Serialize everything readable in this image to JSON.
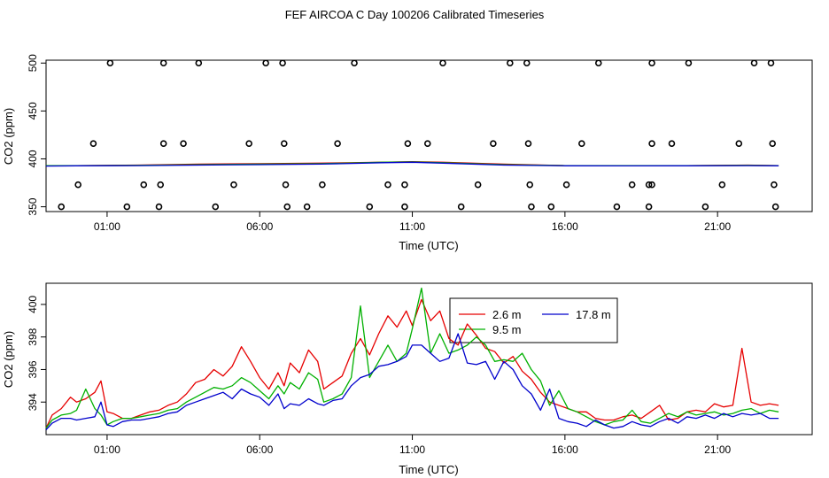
{
  "figure": {
    "title": "FEF AIRCOA C  Day 100206  Calibrated Timeseries"
  },
  "chart_data": [
    {
      "type": "scatter",
      "panel": "top",
      "title": "",
      "xlabel": "Time (UTC)",
      "ylabel": "CO2 (ppm)",
      "x_unit": "hours UTC",
      "xlim": [
        -1.0,
        24.1
      ],
      "ylim": [
        345,
        503
      ],
      "x_tick_values": [
        1,
        6,
        11,
        16,
        21
      ],
      "x_tick_labels": [
        "01:00",
        "06:00",
        "11:00",
        "16:00",
        "21:00"
      ],
      "y_tick_values": [
        350,
        400,
        450,
        500
      ],
      "y_tick_labels": [
        "350",
        "400",
        "450",
        "500"
      ],
      "grid": false,
      "points": [
        {
          "x": 1.1,
          "y": 500
        },
        {
          "x": 2.85,
          "y": 500
        },
        {
          "x": 4.0,
          "y": 500
        },
        {
          "x": 6.2,
          "y": 500
        },
        {
          "x": 6.75,
          "y": 500
        },
        {
          "x": 9.1,
          "y": 500
        },
        {
          "x": 12.0,
          "y": 500
        },
        {
          "x": 14.2,
          "y": 500
        },
        {
          "x": 14.75,
          "y": 500
        },
        {
          "x": 17.1,
          "y": 500
        },
        {
          "x": 18.85,
          "y": 500
        },
        {
          "x": 20.05,
          "y": 500
        },
        {
          "x": 22.2,
          "y": 500
        },
        {
          "x": 22.75,
          "y": 500
        },
        {
          "x": 0.55,
          "y": 416
        },
        {
          "x": 2.85,
          "y": 416
        },
        {
          "x": 3.5,
          "y": 416
        },
        {
          "x": 5.65,
          "y": 416
        },
        {
          "x": 6.8,
          "y": 416
        },
        {
          "x": 8.55,
          "y": 416
        },
        {
          "x": 10.85,
          "y": 416
        },
        {
          "x": 11.5,
          "y": 416
        },
        {
          "x": 13.65,
          "y": 416
        },
        {
          "x": 14.8,
          "y": 416
        },
        {
          "x": 16.55,
          "y": 416
        },
        {
          "x": 18.85,
          "y": 416
        },
        {
          "x": 19.5,
          "y": 416
        },
        {
          "x": 21.7,
          "y": 416
        },
        {
          "x": 22.8,
          "y": 416
        },
        {
          "x": 0.05,
          "y": 373
        },
        {
          "x": 2.2,
          "y": 373
        },
        {
          "x": 2.75,
          "y": 373
        },
        {
          "x": 5.15,
          "y": 373
        },
        {
          "x": 6.85,
          "y": 373
        },
        {
          "x": 8.05,
          "y": 373
        },
        {
          "x": 10.2,
          "y": 373
        },
        {
          "x": 10.75,
          "y": 373
        },
        {
          "x": 13.15,
          "y": 373
        },
        {
          "x": 14.85,
          "y": 373
        },
        {
          "x": 16.05,
          "y": 373
        },
        {
          "x": 18.2,
          "y": 373
        },
        {
          "x": 18.75,
          "y": 373
        },
        {
          "x": 18.85,
          "y": 373
        },
        {
          "x": 21.15,
          "y": 373
        },
        {
          "x": 22.85,
          "y": 373
        },
        {
          "x": -0.5,
          "y": 350
        },
        {
          "x": 1.65,
          "y": 350
        },
        {
          "x": 2.7,
          "y": 350
        },
        {
          "x": 4.55,
          "y": 350
        },
        {
          "x": 6.9,
          "y": 350
        },
        {
          "x": 7.55,
          "y": 350
        },
        {
          "x": 9.6,
          "y": 350
        },
        {
          "x": 10.75,
          "y": 350
        },
        {
          "x": 12.6,
          "y": 350
        },
        {
          "x": 14.9,
          "y": 350
        },
        {
          "x": 15.55,
          "y": 350
        },
        {
          "x": 17.7,
          "y": 350
        },
        {
          "x": 18.75,
          "y": 350
        },
        {
          "x": 20.6,
          "y": 350
        },
        {
          "x": 22.9,
          "y": 350
        }
      ],
      "series": [
        {
          "name": "2.6 m",
          "color": "#e60000",
          "x": [
            -1,
            0,
            2,
            4,
            6,
            8,
            10,
            11,
            12,
            14,
            16,
            18,
            20,
            22,
            23
          ],
          "values": [
            393,
            393,
            393.5,
            394.5,
            395,
            395.5,
            396.5,
            397,
            396.5,
            394.5,
            393,
            393,
            393,
            393.5,
            393
          ]
        },
        {
          "name": "9.5 m",
          "color": "#00b000",
          "x": [
            -1,
            0,
            2,
            4,
            6,
            8,
            10,
            11,
            12,
            14,
            16,
            18,
            20,
            22,
            23
          ],
          "values": [
            393,
            393,
            393.2,
            394,
            394.5,
            395,
            396.5,
            396.8,
            396,
            394,
            393,
            393,
            393,
            393.2,
            393
          ]
        },
        {
          "name": "17.8 m",
          "color": "#0000cc",
          "x": [
            -1,
            0,
            2,
            4,
            6,
            8,
            10,
            11,
            12,
            14,
            16,
            18,
            20,
            22,
            23
          ],
          "values": [
            392.5,
            392.8,
            393,
            393.5,
            394,
            394.5,
            396,
            396.5,
            395.5,
            393.5,
            392.8,
            392.7,
            392.8,
            393,
            392.8
          ]
        }
      ]
    },
    {
      "type": "line",
      "panel": "bottom",
      "title": "",
      "xlabel": "Time (UTC)",
      "ylabel": "CO2 (ppm)",
      "x_unit": "hours UTC",
      "xlim": [
        -1.0,
        24.1
      ],
      "ylim": [
        392.0,
        401.3
      ],
      "x_tick_values": [
        1,
        6,
        11,
        16,
        21
      ],
      "x_tick_labels": [
        "01:00",
        "06:00",
        "11:00",
        "16:00",
        "21:00"
      ],
      "y_tick_values": [
        394,
        396,
        398,
        400
      ],
      "y_tick_labels": [
        "394",
        "396",
        "398",
        "400"
      ],
      "grid": false,
      "legend": {
        "position": "top-center",
        "entries": [
          "2.6 m",
          "9.5 m",
          "17.8 m"
        ]
      },
      "series": [
        {
          "name": "2.6 m",
          "color": "#e60000",
          "x": [
            -1,
            -0.8,
            -0.5,
            -0.2,
            0,
            0.3,
            0.6,
            0.8,
            1.0,
            1.2,
            1.5,
            1.8,
            2.1,
            2.4,
            2.7,
            3.0,
            3.3,
            3.6,
            3.9,
            4.2,
            4.5,
            4.8,
            5.1,
            5.4,
            5.7,
            6.0,
            6.3,
            6.6,
            6.8,
            7.0,
            7.3,
            7.6,
            7.9,
            8.1,
            8.4,
            8.7,
            9.0,
            9.3,
            9.6,
            9.9,
            10.2,
            10.5,
            10.8,
            11.0,
            11.3,
            11.6,
            11.9,
            12.2,
            12.5,
            12.8,
            13.1,
            13.4,
            13.7,
            14.0,
            14.3,
            14.6,
            14.9,
            15.2,
            15.5,
            15.8,
            16.1,
            16.4,
            16.7,
            17.0,
            17.3,
            17.6,
            17.9,
            18.2,
            18.5,
            18.8,
            19.1,
            19.4,
            19.7,
            20.0,
            20.3,
            20.6,
            20.9,
            21.2,
            21.5,
            21.8,
            22.1,
            22.4,
            22.7,
            23.0
          ],
          "values": [
            392.4,
            393.2,
            393.6,
            394.3,
            394.0,
            394.2,
            394.6,
            395.3,
            393.4,
            393.3,
            393.0,
            393.0,
            393.2,
            393.4,
            393.5,
            393.8,
            394.0,
            394.5,
            395.2,
            395.4,
            396.0,
            395.6,
            396.2,
            397.4,
            396.5,
            395.5,
            394.8,
            395.8,
            395.0,
            396.4,
            395.8,
            397.2,
            396.5,
            394.8,
            395.2,
            395.6,
            397.0,
            397.9,
            396.9,
            398.2,
            399.3,
            398.6,
            399.6,
            398.7,
            400.3,
            399.0,
            399.6,
            397.9,
            397.5,
            398.8,
            398.1,
            397.3,
            397.1,
            396.4,
            396.8,
            395.9,
            395.4,
            394.6,
            394.0,
            393.8,
            393.6,
            393.4,
            393.4,
            393.0,
            392.9,
            392.9,
            393.1,
            393.2,
            393.0,
            393.4,
            393.8,
            392.9,
            393.0,
            393.4,
            393.5,
            393.4,
            393.9,
            393.7,
            393.8,
            397.3,
            394.0,
            393.8,
            393.9,
            393.8
          ]
        },
        {
          "name": "9.5 m",
          "color": "#00b000",
          "x": [
            -1,
            -0.8,
            -0.5,
            -0.2,
            0,
            0.3,
            0.6,
            0.8,
            1.0,
            1.2,
            1.5,
            1.8,
            2.1,
            2.4,
            2.7,
            3.0,
            3.3,
            3.6,
            3.9,
            4.2,
            4.5,
            4.8,
            5.1,
            5.4,
            5.7,
            6.0,
            6.3,
            6.6,
            6.8,
            7.0,
            7.3,
            7.6,
            7.9,
            8.1,
            8.4,
            8.7,
            9.0,
            9.3,
            9.6,
            9.9,
            10.2,
            10.5,
            10.8,
            11.0,
            11.3,
            11.6,
            11.9,
            12.2,
            12.5,
            12.8,
            13.1,
            13.4,
            13.7,
            14.0,
            14.3,
            14.6,
            14.9,
            15.2,
            15.5,
            15.8,
            16.1,
            16.4,
            16.7,
            17.0,
            17.3,
            17.6,
            17.9,
            18.2,
            18.5,
            18.8,
            19.1,
            19.4,
            19.7,
            20.0,
            20.3,
            20.6,
            20.9,
            21.2,
            21.5,
            21.8,
            22.1,
            22.4,
            22.7,
            23.0
          ],
          "values": [
            392.4,
            392.9,
            393.2,
            393.3,
            393.5,
            394.8,
            393.6,
            393.2,
            392.6,
            392.8,
            393.0,
            393.0,
            393.1,
            393.2,
            393.3,
            393.5,
            393.6,
            394.0,
            394.3,
            394.6,
            394.9,
            394.8,
            395.0,
            395.5,
            395.2,
            394.7,
            394.2,
            395.0,
            394.5,
            395.2,
            394.8,
            395.8,
            395.4,
            394.0,
            394.2,
            394.5,
            395.5,
            399.9,
            395.5,
            396.5,
            397.5,
            396.5,
            397.0,
            398.5,
            401.0,
            397.0,
            398.2,
            397.0,
            397.2,
            397.5,
            398.0,
            397.5,
            396.5,
            396.6,
            396.5,
            397.0,
            396.0,
            395.3,
            393.8,
            394.7,
            393.6,
            393.4,
            393.1,
            392.8,
            392.6,
            392.8,
            392.9,
            393.5,
            392.8,
            392.7,
            393.0,
            393.3,
            393.1,
            393.4,
            393.2,
            393.3,
            393.4,
            393.2,
            393.3,
            393.5,
            393.6,
            393.3,
            393.5,
            393.4
          ]
        },
        {
          "name": "17.8 m",
          "color": "#0000cc",
          "x": [
            -1,
            -0.8,
            -0.5,
            -0.2,
            0,
            0.3,
            0.6,
            0.8,
            1.0,
            1.2,
            1.5,
            1.8,
            2.1,
            2.4,
            2.7,
            3.0,
            3.3,
            3.6,
            3.9,
            4.2,
            4.5,
            4.8,
            5.1,
            5.4,
            5.7,
            6.0,
            6.3,
            6.6,
            6.8,
            7.0,
            7.3,
            7.6,
            7.9,
            8.1,
            8.4,
            8.7,
            9.0,
            9.3,
            9.6,
            9.9,
            10.2,
            10.5,
            10.8,
            11.0,
            11.3,
            11.6,
            11.9,
            12.2,
            12.5,
            12.8,
            13.1,
            13.4,
            13.7,
            14.0,
            14.3,
            14.6,
            14.9,
            15.2,
            15.5,
            15.8,
            16.1,
            16.4,
            16.7,
            17.0,
            17.3,
            17.6,
            17.9,
            18.2,
            18.5,
            18.8,
            19.1,
            19.4,
            19.7,
            20.0,
            20.3,
            20.6,
            20.9,
            21.2,
            21.5,
            21.8,
            22.1,
            22.4,
            22.7,
            23.0
          ],
          "values": [
            392.3,
            392.7,
            393.0,
            393.0,
            392.9,
            393.0,
            393.1,
            394.0,
            392.6,
            392.5,
            392.8,
            392.9,
            392.9,
            393.0,
            393.1,
            393.3,
            393.4,
            393.8,
            394.0,
            394.2,
            394.4,
            394.6,
            394.2,
            394.8,
            394.5,
            394.3,
            393.8,
            394.5,
            393.6,
            393.9,
            393.8,
            394.2,
            393.9,
            393.8,
            394.1,
            394.2,
            395.0,
            395.5,
            395.7,
            396.2,
            396.3,
            396.5,
            396.8,
            397.5,
            397.5,
            397.0,
            396.5,
            396.7,
            398.2,
            396.4,
            396.3,
            396.5,
            395.4,
            396.5,
            396.0,
            395.0,
            394.5,
            393.5,
            394.8,
            393.0,
            392.8,
            392.7,
            392.5,
            392.9,
            392.6,
            392.4,
            392.5,
            392.8,
            392.6,
            392.5,
            392.8,
            393.0,
            392.7,
            393.1,
            393.0,
            393.2,
            393.0,
            393.3,
            393.1,
            393.3,
            393.2,
            393.3,
            393.0,
            393.0
          ]
        }
      ]
    }
  ]
}
